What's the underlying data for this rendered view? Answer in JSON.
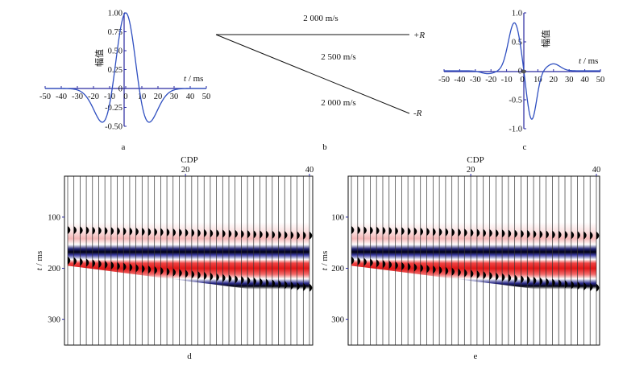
{
  "panel_a": {
    "label": "a",
    "ylabel": "幅值",
    "xlabel_var": "t",
    "xlabel_unit": " / ms",
    "xlim": [
      -50,
      50
    ],
    "ylim": [
      -0.5,
      1.0
    ],
    "x_ticks": [
      "-50",
      "-40",
      "-30",
      "-20",
      "-10",
      "0",
      "10",
      "20",
      "30",
      "40",
      "50"
    ],
    "y_ticks": [
      "-0.50",
      "-0.25",
      "0",
      "0.25",
      "0.50",
      "0.75",
      "1.00"
    ]
  },
  "panel_b": {
    "label": "b",
    "velocity_top": "2 000 m/s",
    "velocity_mid": "2 500 m/s",
    "velocity_bottom": "2 000 m/s",
    "plus_r": "+R",
    "minus_r": "-R"
  },
  "panel_c": {
    "label": "c",
    "ylabel": "幅值",
    "xlabel_var": "t",
    "xlabel_unit": " / ms",
    "xlim": [
      -50,
      50
    ],
    "ylim": [
      -1.0,
      1.0
    ],
    "x_ticks": [
      "-50",
      "-40",
      "-30",
      "-20",
      "-10",
      "0",
      "10",
      "20",
      "30",
      "40",
      "50"
    ],
    "y_ticks": [
      "-1.0",
      "-0.5",
      "0",
      "0.5",
      "1.0"
    ]
  },
  "panel_d": {
    "label": "d",
    "xlabel": "CDP",
    "ylabel_var": "t",
    "ylabel_unit": " / ms",
    "x_ticks": [
      "20",
      "40"
    ],
    "y_ticks": [
      "100",
      "200",
      "300"
    ],
    "trace_count": 40,
    "t_range": [
      20,
      350
    ]
  },
  "panel_e": {
    "label": "e",
    "xlabel": "CDP",
    "ylabel_var": "t",
    "ylabel_unit": " / ms",
    "x_ticks": [
      "20",
      "40"
    ],
    "y_ticks": [
      "100",
      "200",
      "300"
    ],
    "trace_count": 40,
    "t_range": [
      20,
      350
    ]
  },
  "colors": {
    "axis": "#2a2aa0",
    "curve": "#2f4fc0",
    "red": "#e01a1a",
    "blue": "#1a1a8a"
  }
}
